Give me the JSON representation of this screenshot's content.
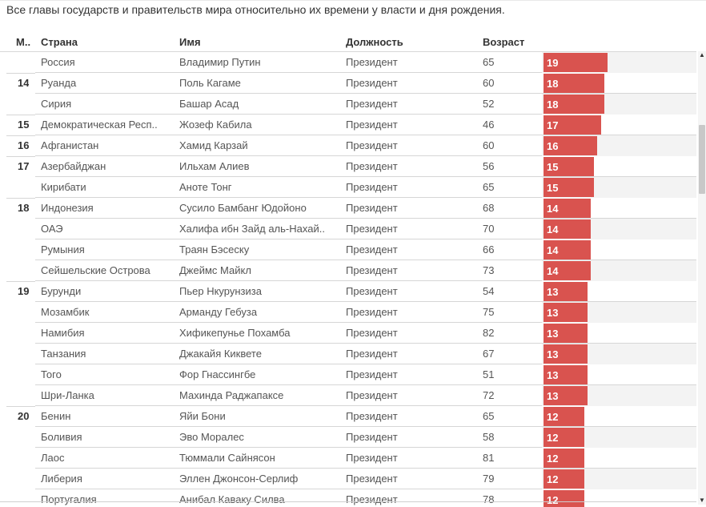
{
  "caption": "Все главы государств и правительств мира относительно их времени у власти и дня рождения.",
  "columns": {
    "rank": "М..",
    "country": "Страна",
    "name": "Имя",
    "position": "Должность",
    "age": "Возраст"
  },
  "colors": {
    "bar": "#d9534f",
    "bar_text": "#ffffff"
  },
  "bar_scale_max": 19,
  "rows": [
    {
      "rank": "",
      "country": "Россия",
      "name": "Владимир Путин",
      "position": "Президент",
      "age": "65",
      "years": 19
    },
    {
      "rank": "14",
      "country": "Руанда",
      "name": "Поль Кагаме",
      "position": "Президент",
      "age": "60",
      "years": 18
    },
    {
      "rank": "",
      "country": "Сирия",
      "name": "Башар Асад",
      "position": "Президент",
      "age": "52",
      "years": 18
    },
    {
      "rank": "15",
      "country": "Демократическая Респ..",
      "name": "Жозеф Кабила",
      "position": "Президент",
      "age": "46",
      "years": 17
    },
    {
      "rank": "16",
      "country": "Афганистан",
      "name": "Хамид Карзай",
      "position": "Президент",
      "age": "60",
      "years": 16
    },
    {
      "rank": "17",
      "country": "Азербайджан",
      "name": "Ильхам Алиев",
      "position": "Президент",
      "age": "56",
      "years": 15
    },
    {
      "rank": "",
      "country": "Кирибати",
      "name": "Аноте Тонг",
      "position": "Президент",
      "age": "65",
      "years": 15
    },
    {
      "rank": "18",
      "country": "Индонезия",
      "name": "Сусило Бамбанг Юдойоно",
      "position": "Президент",
      "age": "68",
      "years": 14
    },
    {
      "rank": "",
      "country": "ОАЭ",
      "name": "Халифа ибн Зайд аль-Нахай..",
      "position": "Президент",
      "age": "70",
      "years": 14
    },
    {
      "rank": "",
      "country": "Румыния",
      "name": "Траян Бэсеску",
      "position": "Президент",
      "age": "66",
      "years": 14
    },
    {
      "rank": "",
      "country": "Сейшельские Острова",
      "name": "Джеймс Майкл",
      "position": "Президент",
      "age": "73",
      "years": 14
    },
    {
      "rank": "19",
      "country": "Бурунди",
      "name": "Пьер Нкурунзиза",
      "position": "Президент",
      "age": "54",
      "years": 13
    },
    {
      "rank": "",
      "country": "Мозамбик",
      "name": "Арманду Гебуза",
      "position": "Президент",
      "age": "75",
      "years": 13
    },
    {
      "rank": "",
      "country": "Намибия",
      "name": "Хификепунье Похамба",
      "position": "Президент",
      "age": "82",
      "years": 13
    },
    {
      "rank": "",
      "country": "Танзания",
      "name": "Джакайя Киквете",
      "position": "Президент",
      "age": "67",
      "years": 13
    },
    {
      "rank": "",
      "country": "Того",
      "name": "Фор Гнассингбе",
      "position": "Президент",
      "age": "51",
      "years": 13
    },
    {
      "rank": "",
      "country": "Шри-Ланка",
      "name": "Махинда Раджапаксе",
      "position": "Президент",
      "age": "72",
      "years": 13
    },
    {
      "rank": "20",
      "country": "Бенин",
      "name": "Яйи Бони",
      "position": "Президент",
      "age": "65",
      "years": 12
    },
    {
      "rank": "",
      "country": "Боливия",
      "name": "Эво Моралес",
      "position": "Президент",
      "age": "58",
      "years": 12
    },
    {
      "rank": "",
      "country": "Лаос",
      "name": "Тюммали Сайнясон",
      "position": "Президент",
      "age": "81",
      "years": 12
    },
    {
      "rank": "",
      "country": "Либерия",
      "name": "Эллен Джонсон-Серлиф",
      "position": "Президент",
      "age": "79",
      "years": 12
    },
    {
      "rank": "",
      "country": "Португалия",
      "name": "Анибал Каваку Силва",
      "position": "Президент",
      "age": "78",
      "years": 12
    }
  ]
}
